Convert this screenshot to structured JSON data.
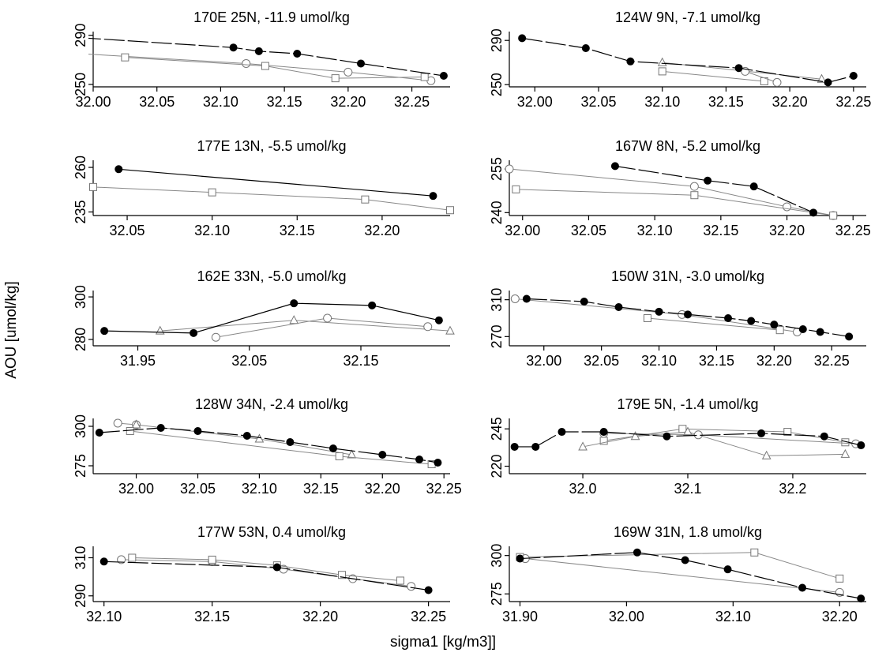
{
  "figure": {
    "ylabel": "AOU [umol/kg]",
    "xlabel": "sigma1 [kg/m3]]"
  },
  "chart_data": [
    {
      "type": "line",
      "title": "170E 25N, -11.9 umol/kg",
      "xlim": [
        32.0,
        32.28
      ],
      "ylim": [
        248,
        293
      ],
      "xticks": [
        "32.00",
        "32.05",
        "32.10",
        "32.15",
        "32.20",
        "32.25"
      ],
      "yticks": [
        "250",
        "290"
      ],
      "series": [
        {
          "marker": "filled-circle",
          "color": "#000000",
          "dash": "long",
          "x": [
            31.99,
            32.11,
            32.13,
            32.16,
            32.21,
            32.275
          ],
          "y": [
            288,
            280,
            277,
            275,
            267,
            257
          ]
        },
        {
          "marker": "open-circle",
          "color": "#888888",
          "dash": "solid",
          "x": [
            31.99,
            32.12,
            32.2,
            32.265
          ],
          "y": [
            275,
            267,
            260,
            253
          ]
        },
        {
          "marker": "open-square",
          "color": "#888888",
          "dash": "solid",
          "x": [
            32.025,
            32.135,
            32.19,
            32.26
          ],
          "y": [
            272,
            265,
            255,
            256
          ]
        }
      ]
    },
    {
      "type": "line",
      "title": "124W 9N, -7.1 umol/kg",
      "xlim": [
        31.98,
        32.26
      ],
      "ylim": [
        248,
        298
      ],
      "xticks": [
        "32.00",
        "32.05",
        "32.10",
        "32.15",
        "32.20",
        "32.25"
      ],
      "yticks": [
        "250",
        "290"
      ],
      "series": [
        {
          "marker": "filled-circle",
          "color": "#000000",
          "dash": "long",
          "x": [
            31.99,
            32.04,
            32.075,
            32.16,
            32.23,
            32.25
          ],
          "y": [
            292,
            283,
            271,
            265,
            252,
            258
          ]
        },
        {
          "marker": "open-triangle",
          "color": "#888888",
          "dash": "solid",
          "x": [
            32.1,
            32.225
          ],
          "y": [
            270,
            255
          ]
        },
        {
          "marker": "open-square",
          "color": "#888888",
          "dash": "solid",
          "x": [
            32.1,
            32.18
          ],
          "y": [
            262,
            253
          ]
        },
        {
          "marker": "open-circle",
          "color": "#888888",
          "dash": "solid",
          "x": [
            32.165,
            32.19
          ],
          "y": [
            262,
            252
          ]
        }
      ]
    },
    {
      "type": "line",
      "title": "177E 13N, -5.5 umol/kg",
      "xlim": [
        32.03,
        32.24
      ],
      "ylim": [
        233,
        264
      ],
      "xticks": [
        "32.05",
        "32.10",
        "32.15",
        "32.20"
      ],
      "yticks": [
        "235",
        "260"
      ],
      "series": [
        {
          "marker": "filled-circle",
          "color": "#000000",
          "dash": "solid",
          "x": [
            32.045,
            32.23
          ],
          "y": [
            259,
            244
          ]
        },
        {
          "marker": "open-square",
          "color": "#888888",
          "dash": "solid",
          "x": [
            32.03,
            32.1,
            32.19,
            32.24
          ],
          "y": [
            249,
            246,
            242,
            236
          ]
        }
      ]
    },
    {
      "type": "line",
      "title": "167W 8N, -5.2 umol/kg",
      "xlim": [
        31.99,
        32.26
      ],
      "ylim": [
        239,
        258
      ],
      "xticks": [
        "32.00",
        "32.05",
        "32.10",
        "32.15",
        "32.20",
        "32.25"
      ],
      "yticks": [
        "240",
        "255"
      ],
      "series": [
        {
          "marker": "filled-circle",
          "color": "#000000",
          "dash": "long",
          "x": [
            32.07,
            32.14,
            32.175,
            32.22
          ],
          "y": [
            256,
            251,
            249,
            240
          ]
        },
        {
          "marker": "open-circle",
          "color": "#888888",
          "dash": "solid",
          "x": [
            31.99,
            32.13,
            32.2,
            32.235
          ],
          "y": [
            255,
            249,
            242,
            239
          ]
        },
        {
          "marker": "open-square",
          "color": "#888888",
          "dash": "solid",
          "x": [
            31.995,
            32.13,
            32.235
          ],
          "y": [
            248,
            246,
            239
          ]
        }
      ]
    },
    {
      "type": "line",
      "title": "162E 33N, -5.0 umol/kg",
      "xlim": [
        31.91,
        32.23
      ],
      "ylim": [
        277,
        303
      ],
      "xticks": [
        "31.95",
        "32.05",
        "32.15"
      ],
      "yticks": [
        "280",
        "300"
      ],
      "series": [
        {
          "marker": "filled-circle",
          "color": "#000000",
          "dash": "solid",
          "x": [
            31.92,
            32.0,
            32.09,
            32.16,
            32.22
          ],
          "y": [
            284,
            283,
            297,
            296,
            289
          ]
        },
        {
          "marker": "open-triangle",
          "color": "#888888",
          "dash": "solid",
          "x": [
            31.97,
            32.09,
            32.23
          ],
          "y": [
            284,
            289,
            284
          ]
        },
        {
          "marker": "open-circle",
          "color": "#888888",
          "dash": "solid",
          "x": [
            32.02,
            32.12,
            32.21
          ],
          "y": [
            281,
            290,
            286
          ]
        }
      ]
    },
    {
      "type": "line",
      "title": "150W 31N, -3.0 umol/kg",
      "xlim": [
        31.97,
        32.28
      ],
      "ylim": [
        260,
        320
      ],
      "xticks": [
        "32.00",
        "32.05",
        "32.10",
        "32.15",
        "32.20",
        "32.25"
      ],
      "yticks": [
        "270",
        "310"
      ],
      "series": [
        {
          "marker": "filled-circle",
          "color": "#000000",
          "dash": "long",
          "x": [
            31.985,
            32.035,
            32.065,
            32.1,
            32.125,
            32.16,
            32.18,
            32.2,
            32.225,
            32.24,
            32.265
          ],
          "y": [
            311,
            308,
            302,
            297,
            294,
            290,
            287,
            283,
            278,
            275,
            270
          ]
        },
        {
          "marker": "open-circle",
          "color": "#888888",
          "dash": "solid",
          "x": [
            31.975,
            32.12,
            32.22
          ],
          "y": [
            311,
            294,
            275
          ]
        },
        {
          "marker": "open-square",
          "color": "#888888",
          "dash": "solid",
          "x": [
            32.09,
            32.205
          ],
          "y": [
            290,
            277
          ]
        }
      ]
    },
    {
      "type": "line",
      "title": "128W 34N, -2.4 umol/kg",
      "xlim": [
        31.965,
        32.255
      ],
      "ylim": [
        270,
        305
      ],
      "xticks": [
        "32.00",
        "32.05",
        "32.10",
        "32.15",
        "32.20",
        "32.25"
      ],
      "yticks": [
        "275",
        "300"
      ],
      "series": [
        {
          "marker": "filled-circle",
          "color": "#000000",
          "dash": "long",
          "x": [
            31.97,
            32.02,
            32.05,
            32.09,
            32.125,
            32.16,
            32.2,
            32.23,
            32.245
          ],
          "y": [
            296,
            299,
            297,
            294,
            290,
            286,
            282,
            279,
            277
          ]
        },
        {
          "marker": "open-circle",
          "color": "#888888",
          "dash": "solid",
          "x": [
            31.985,
            32.0
          ],
          "y": [
            302,
            301
          ]
        },
        {
          "marker": "open-triangle",
          "color": "#888888",
          "dash": "solid",
          "x": [
            32.0,
            32.1,
            32.175
          ],
          "y": [
            301,
            292,
            282
          ]
        },
        {
          "marker": "open-square",
          "color": "#888888",
          "dash": "solid",
          "x": [
            31.995,
            32.165,
            32.24
          ],
          "y": [
            297,
            281,
            276
          ]
        }
      ]
    },
    {
      "type": "line",
      "title": "179E 5N, -1.4 umol/kg",
      "xlim": [
        31.93,
        32.27
      ],
      "ylim": [
        215,
        252
      ],
      "xticks": [
        "32.0",
        "32.1",
        "32.2"
      ],
      "yticks": [
        "220",
        "245"
      ],
      "series": [
        {
          "marker": "filled-circle",
          "color": "#000000",
          "dash": "long",
          "x": [
            31.935,
            31.955,
            31.98,
            32.02,
            32.08,
            32.17,
            32.23,
            32.265
          ],
          "y": [
            233,
            233,
            243,
            243,
            240,
            242,
            240,
            234
          ]
        },
        {
          "marker": "open-square",
          "color": "#888888",
          "dash": "solid",
          "x": [
            32.02,
            32.095,
            32.195,
            32.25
          ],
          "y": [
            237,
            245,
            243,
            236
          ]
        },
        {
          "marker": "open-triangle",
          "color": "#888888",
          "dash": "solid",
          "x": [
            32.0,
            32.05,
            32.1,
            32.175,
            32.25
          ],
          "y": [
            233,
            240,
            243,
            227,
            228
          ]
        },
        {
          "marker": "open-circle",
          "color": "#888888",
          "dash": "solid",
          "x": [
            32.02,
            32.11,
            32.26
          ],
          "y": [
            242,
            241,
            235
          ]
        }
      ]
    },
    {
      "type": "line",
      "title": "177W 53N, 0.4 umol/kg",
      "xlim": [
        32.095,
        32.26
      ],
      "ylim": [
        287,
        316
      ],
      "xticks": [
        "32.10",
        "32.15",
        "32.20",
        "32.25"
      ],
      "yticks": [
        "290",
        "310"
      ],
      "series": [
        {
          "marker": "filled-circle",
          "color": "#000000",
          "dash": "long",
          "x": [
            32.1,
            32.18,
            32.25
          ],
          "y": [
            308,
            305,
            293
          ]
        },
        {
          "marker": "open-circle",
          "color": "#888888",
          "dash": "solid",
          "x": [
            32.108,
            32.15,
            32.183,
            32.215,
            32.242
          ],
          "y": [
            309,
            308,
            304,
            299,
            295
          ]
        },
        {
          "marker": "open-square",
          "color": "#888888",
          "dash": "solid",
          "x": [
            32.113,
            32.15,
            32.18,
            32.21,
            32.237
          ],
          "y": [
            310,
            309,
            306,
            301,
            298
          ]
        }
      ]
    },
    {
      "type": "line",
      "title": "169W 31N, 1.8 umol/kg",
      "xlim": [
        31.89,
        32.225
      ],
      "ylim": [
        270,
        306
      ],
      "xticks": [
        "31.90",
        "32.00",
        "32.10",
        "32.20"
      ],
      "yticks": [
        "275",
        "300"
      ],
      "series": [
        {
          "marker": "filled-circle",
          "color": "#000000",
          "dash": "long",
          "x": [
            31.9,
            32.01,
            32.055,
            32.095,
            32.165,
            32.22
          ],
          "y": [
            298,
            302,
            297,
            291,
            279,
            272
          ]
        },
        {
          "marker": "open-square",
          "color": "#888888",
          "dash": "solid",
          "x": [
            31.9,
            32.12,
            32.2
          ],
          "y": [
            299,
            302,
            285
          ]
        },
        {
          "marker": "open-circle",
          "color": "#888888",
          "dash": "solid",
          "x": [
            31.905,
            32.2
          ],
          "y": [
            298,
            276
          ]
        }
      ]
    }
  ]
}
